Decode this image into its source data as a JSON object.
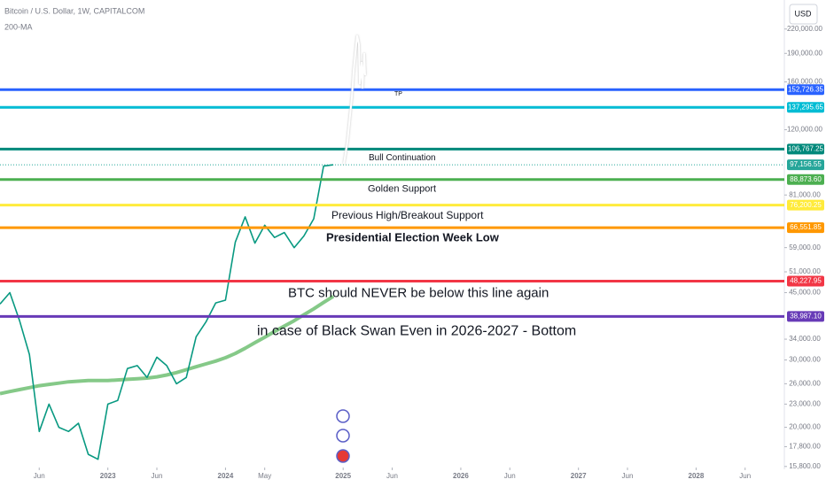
{
  "chart_data": {
    "type": "line",
    "title": "Bitcoin / U.S. Dollar, 1W, CAPITALCOM",
    "currency": "USD",
    "log_scale": true,
    "grid": false,
    "x": [
      "2022-02",
      "2022-03",
      "2022-04",
      "2022-05",
      "2022-06",
      "2022-07",
      "2022-08",
      "2022-09",
      "2022-10",
      "2022-11",
      "2022-12",
      "2023-01",
      "2023-02",
      "2023-03",
      "2023-04",
      "2023-05",
      "2023-06",
      "2023-07",
      "2023-08",
      "2023-09",
      "2023-10",
      "2023-11",
      "2023-12",
      "2024-01",
      "2024-02",
      "2024-03",
      "2024-04",
      "2024-05",
      "2024-06",
      "2024-07",
      "2024-08",
      "2024-09",
      "2024-10",
      "2024-11",
      "2024-12"
    ],
    "values": [
      42000,
      45000,
      38000,
      31000,
      19500,
      23000,
      20000,
      19500,
      20500,
      17000,
      16500,
      23000,
      23500,
      28500,
      29000,
      27000,
      30500,
      29000,
      26000,
      27000,
      34500,
      37700,
      42300,
      43000,
      61000,
      71000,
      60600,
      67500,
      62700,
      64600,
      59000,
      63300,
      70200,
      96400,
      97156.55
    ],
    "color": "#089981",
    "series": [
      {
        "name": "200-MA",
        "color": "#66bb6a",
        "values": [
          24500,
          24800,
          25100,
          25400,
          25700,
          25900,
          26100,
          26300,
          26400,
          26500,
          26500,
          26500,
          26600,
          26700,
          26800,
          26900,
          27100,
          27400,
          27800,
          28300,
          28800,
          29300,
          29800,
          30400,
          31200,
          32200,
          33300,
          34400,
          35600,
          36800,
          38000,
          39400,
          40800,
          42400,
          44000
        ]
      }
    ],
    "xlim": [
      "2022-02",
      "2028-10"
    ],
    "xticks": [
      {
        "value": "2022-06",
        "label": "Jun"
      },
      {
        "value": "2023-01",
        "label": "2023"
      },
      {
        "value": "2023-06",
        "label": "Jun"
      },
      {
        "value": "2024-01",
        "label": "2024"
      },
      {
        "value": "2024-05",
        "label": "May"
      },
      {
        "value": "2025-01",
        "label": "2025"
      },
      {
        "value": "2025-06",
        "label": "Jun"
      },
      {
        "value": "2026-01",
        "label": "2026"
      },
      {
        "value": "2026-06",
        "label": "Jun"
      },
      {
        "value": "2027-01",
        "label": "2027"
      },
      {
        "value": "2027-06",
        "label": "Jun"
      },
      {
        "value": "2028-01",
        "label": "2028"
      },
      {
        "value": "2028-06",
        "label": "Jun"
      }
    ],
    "ylim": [
      15700,
      262000
    ],
    "yticks": [
      {
        "value": 220000,
        "label": "220,000.00"
      },
      {
        "value": 190000,
        "label": "190,000.00"
      },
      {
        "value": 160000,
        "label": "160,000.00"
      },
      {
        "value": 120000,
        "label": "120,000.00"
      },
      {
        "value": 81000,
        "label": "81,000.00"
      },
      {
        "value": 59000,
        "label": "59,000.00"
      },
      {
        "value": 51000,
        "label": "51,000.00"
      },
      {
        "value": 45000,
        "label": "45,000.00"
      },
      {
        "value": 34000,
        "label": "34,000.00"
      },
      {
        "value": 30000,
        "label": "30,000.00"
      },
      {
        "value": 26000,
        "label": "26,000.00"
      },
      {
        "value": 23000,
        "label": "23,000.00"
      },
      {
        "value": 20000,
        "label": "20,000.00"
      },
      {
        "value": 17800,
        "label": "17,800.00"
      },
      {
        "value": 15800,
        "label": "15,800.00"
      }
    ],
    "current_price": {
      "value": 97156.55,
      "label": "97,156.55",
      "color": "#26a69a"
    },
    "levels": [
      {
        "value": 152726.35,
        "label": "152,726.35",
        "text": "TP",
        "color": "#2962ff"
      },
      {
        "value": 137295.65,
        "label": "137,295.65",
        "color": "#00bcd4"
      },
      {
        "value": 106767.25,
        "label": "106,767.25",
        "text": "Bull Continuation",
        "color": "#00897b"
      },
      {
        "value": 88873.6,
        "label": "88,873.60",
        "text": "Golden Support",
        "color": "#4caf50"
      },
      {
        "value": 76200.25,
        "label": "76,200.25",
        "text": "Previous High/Breakout Support",
        "color": "#ffeb3b"
      },
      {
        "value": 66551.85,
        "label": "66,551.85",
        "text": "Presidential Election Week Low",
        "color": "#ff9800"
      },
      {
        "value": 48227.95,
        "label": "48,227.95",
        "text": "BTC should NEVER be below this line again",
        "color": "#f23645"
      },
      {
        "value": 38987.1,
        "label": "38,987.10",
        "text": "in case of Black Swan Even in 2026-2027 - Bottom",
        "color": "#673ab7"
      }
    ]
  }
}
